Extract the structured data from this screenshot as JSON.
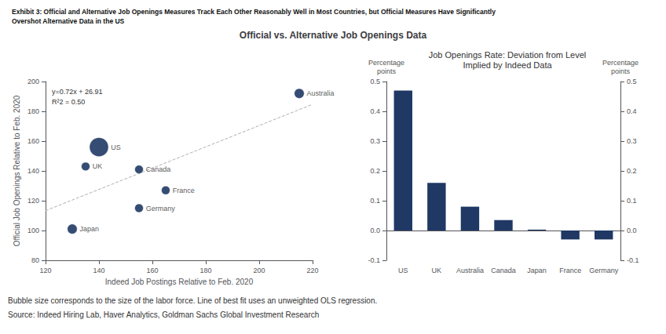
{
  "title": "Exhibit 3: Official and Alternative Job Openings Measures Track Each Other Reasonably Well in Most Countries, but Official Measures Have Significantly\nOvershot Alternative Data in the US",
  "subtitle": "Official vs. Alternative Job Openings Data",
  "notes": [
    "Bubble size corresponds to the size of the labor force. Line of best fit uses an unweighted OLS regression.",
    "Source: Indeed Hiring Lab, Haver Analytics, Goldman Sachs Global Investment Research"
  ],
  "chart_data": [
    {
      "type": "scatter",
      "labels": [
        "Japan",
        "UK",
        "US",
        "Canada",
        "France",
        "Germany",
        "Australia"
      ],
      "x": [
        130,
        135,
        140,
        155,
        165,
        155,
        215
      ],
      "values": [
        101,
        143,
        156,
        141,
        127,
        115,
        192
      ],
      "sizes": [
        80,
        60,
        300,
        60,
        60,
        60,
        80
      ],
      "color": "#1f3864",
      "xlabel": "Indeed Job Postings Relative to Feb. 2020",
      "ylabel": "Official Job Openings Relative to Feb. 2020",
      "xlim": [
        120,
        220
      ],
      "ylim": [
        80,
        200
      ],
      "xticks": [
        120,
        140,
        160,
        180,
        200,
        220
      ],
      "yticks": [
        80,
        100,
        120,
        140,
        160,
        180,
        200
      ],
      "grid": false,
      "annotation": "y=0.72x + 26.91\nR²2 = 0.50",
      "regression": {
        "type": "line",
        "x": [
          120,
          220
        ],
        "values": [
          113.31,
          184.71
        ],
        "color": "#b0b0b0",
        "line_style": "dashed"
      }
    },
    {
      "type": "bar",
      "title": "Job Openings Rate: Deviation from Level\nImplied by Indeed Data",
      "categories": [
        "US",
        "UK",
        "Australia",
        "Canada",
        "Japan",
        "France",
        "Germany"
      ],
      "values": [
        0.47,
        0.16,
        0.08,
        0.035,
        0.003,
        -0.03,
        -0.03
      ],
      "color": "#1f3864",
      "ylabel": "Percentage\npoints",
      "y2label": "Percentage\npoints",
      "ylim": [
        -0.1,
        0.5
      ],
      "yticks": [
        -0.1,
        {
          "value": 0,
          "label": "0.0"
        },
        0.1,
        0.2,
        0.3,
        0.4,
        0.5
      ],
      "y2lim": [
        -0.1,
        0.5
      ],
      "y2ticks": [
        -0.1,
        {
          "value": 0,
          "label": "0.0"
        },
        0.1,
        0.2,
        0.3,
        0.4,
        0.5
      ],
      "grid": false
    }
  ]
}
